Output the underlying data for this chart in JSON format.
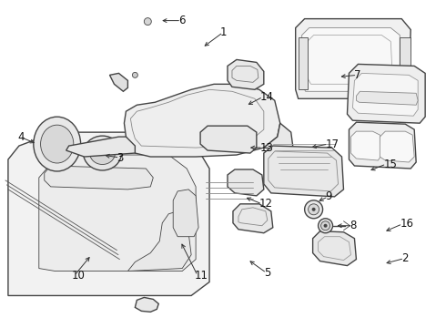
{
  "background_color": "#ffffff",
  "line_color": "#444444",
  "label_color": "#111111",
  "lw": 1.0,
  "thin_lw": 0.6,
  "font_size": 8.5
}
